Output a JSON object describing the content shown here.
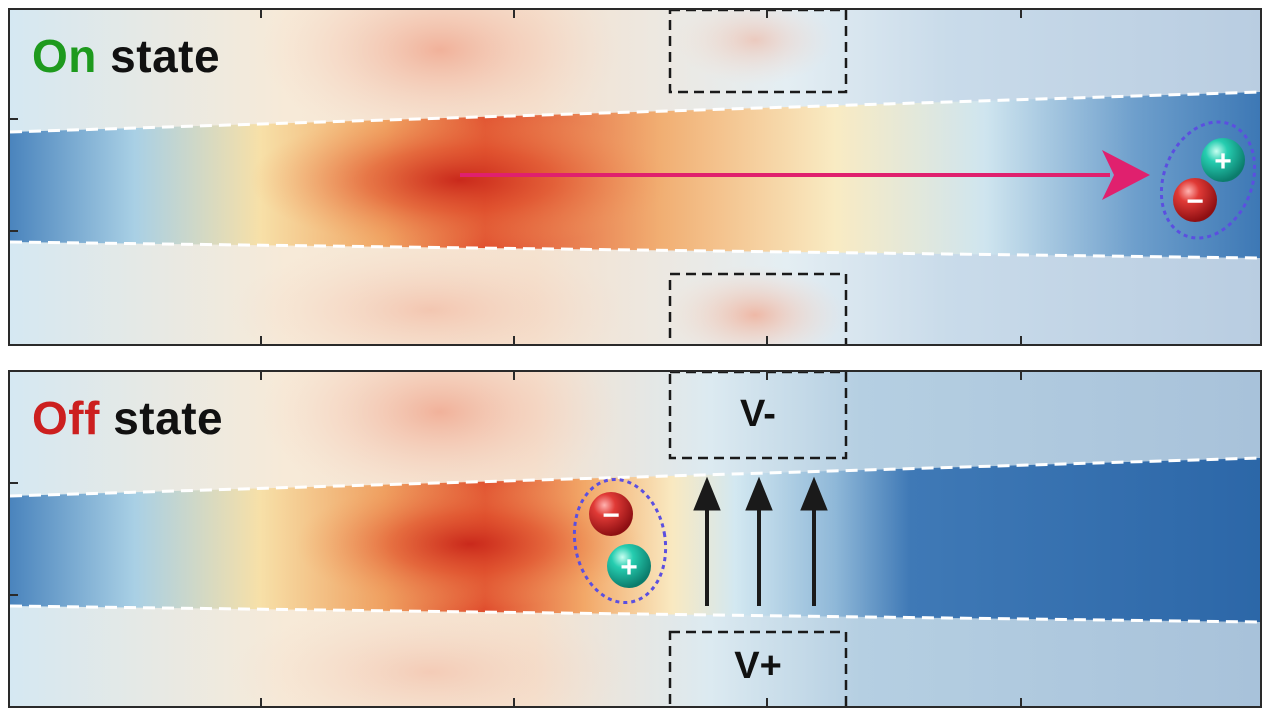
{
  "figure": {
    "panels": [
      {
        "id": "on",
        "state_word": "On",
        "state_word_color": "#1e9a1e",
        "state_suffix": "state",
        "electrode_labels": [],
        "carrier_pair_charges": [
          "+",
          "−"
        ]
      },
      {
        "id": "off",
        "state_word": "Off",
        "state_word_color": "#cc1f1f",
        "state_suffix": "state",
        "electrode_labels": [
          "V-",
          "V+"
        ],
        "carrier_pair_charges": [
          "−",
          "+"
        ]
      }
    ],
    "colors": {
      "hot": "#d62a1c",
      "warm": "#f4a35c",
      "neutral": "#dceef5",
      "cool": "#2f72b4",
      "arrow": "#e0206e",
      "field_arrow": "#1a1a1a",
      "boundary": "#ffffff",
      "pair_outline": "#5b4fe0",
      "electron": "#d3262b",
      "hole": "#1fc4a8"
    }
  }
}
